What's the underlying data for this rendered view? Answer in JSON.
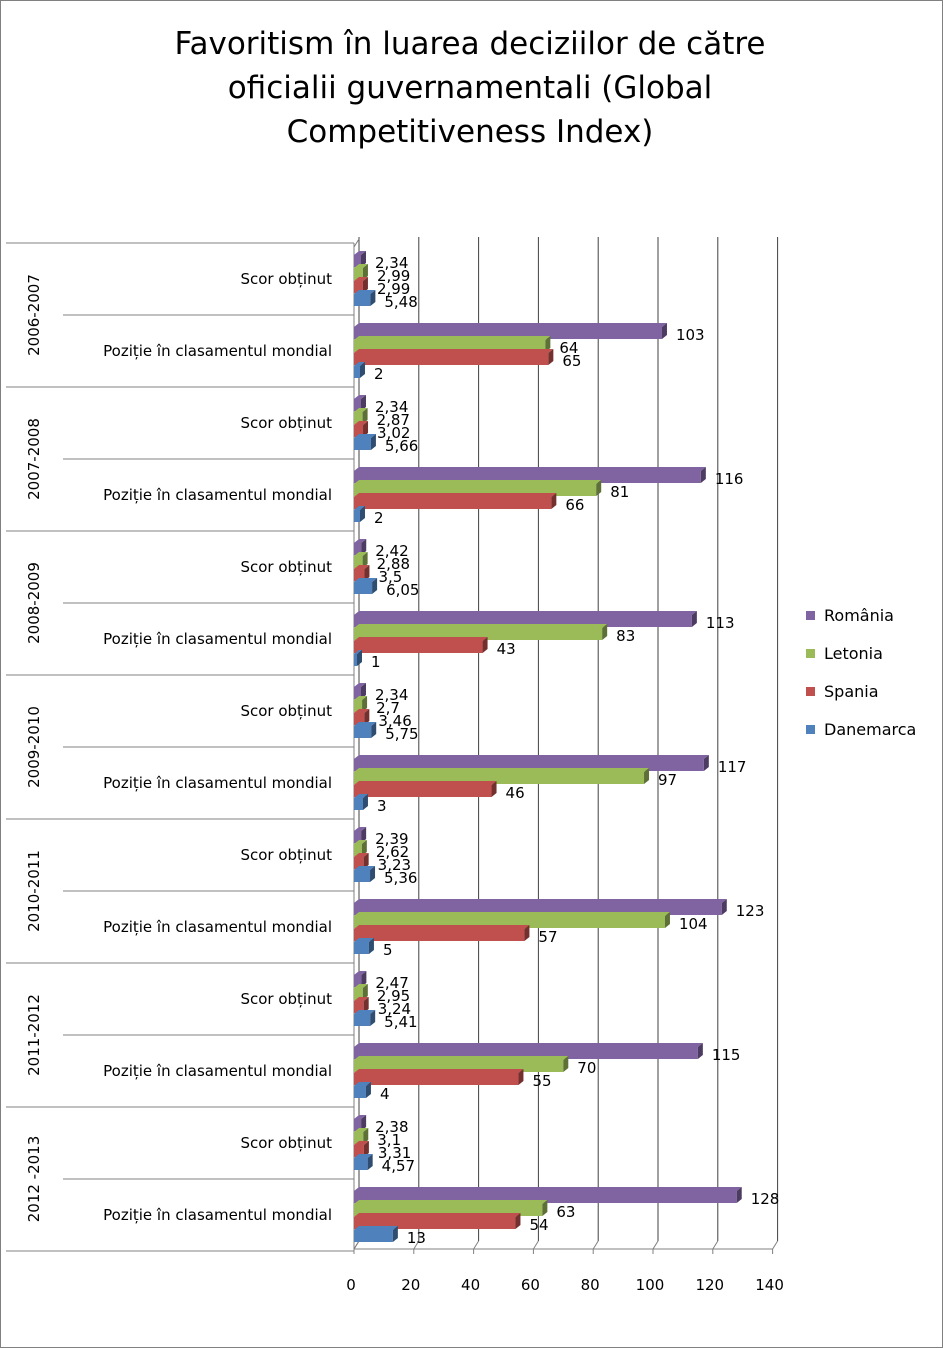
{
  "chart_data": {
    "type": "bar",
    "orientation": "horizontal",
    "title": "Favoritism în luarea deciziilor de către oficialii guvernamentali (Global Competitiveness Index)",
    "title_lines": [
      "Favoritism în luarea deciziilor de către",
      "oficialii guvernamentali (Global",
      "Competitiveness Index)"
    ],
    "xlim": [
      0,
      140
    ],
    "x_ticks": [
      "0",
      "20",
      "40",
      "60",
      "80",
      "100",
      "120",
      "140"
    ],
    "grid": true,
    "legend_position": "right",
    "groups": [
      {
        "period": "2006-2007",
        "categories": [
          {
            "label": "Scor obținut",
            "values": {
              "România": 2.34,
              "Letonia": 2.99,
              "Spania": 2.99,
              "Danemarca": 5.48
            },
            "labels": {
              "România": "2,34",
              "Letonia": "2,99",
              "Spania": "2,99",
              "Danemarca": "5,48"
            }
          },
          {
            "label": "Poziție în clasamentul mondial",
            "values": {
              "România": 103,
              "Letonia": 64,
              "Spania": 65,
              "Danemarca": 2
            },
            "labels": {
              "România": "103",
              "Letonia": "64",
              "Spania": "65",
              "Danemarca": "2"
            }
          }
        ]
      },
      {
        "period": "2007-2008",
        "categories": [
          {
            "label": "Scor obținut",
            "values": {
              "România": 2.34,
              "Letonia": 2.87,
              "Spania": 3.02,
              "Danemarca": 5.66
            },
            "labels": {
              "România": "2,34",
              "Letonia": "2,87",
              "Spania": "3,02",
              "Danemarca": "5,66"
            }
          },
          {
            "label": "Poziție în clasamentul mondial",
            "values": {
              "România": 116,
              "Letonia": 81,
              "Spania": 66,
              "Danemarca": 2
            },
            "labels": {
              "România": "116",
              "Letonia": "81",
              "Spania": "66",
              "Danemarca": "2"
            }
          }
        ]
      },
      {
        "period": "2008-2009",
        "categories": [
          {
            "label": "Scor obținut",
            "values": {
              "România": 2.42,
              "Letonia": 2.88,
              "Spania": 3.5,
              "Danemarca": 6.05
            },
            "labels": {
              "România": "2,42",
              "Letonia": "2,88",
              "Spania": "3,5",
              "Danemarca": "6,05"
            }
          },
          {
            "label": "Poziție în clasamentul mondial",
            "values": {
              "România": 113,
              "Letonia": 83,
              "Spania": 43,
              "Danemarca": 1
            },
            "labels": {
              "România": "113",
              "Letonia": "83",
              "Spania": "43",
              "Danemarca": "1"
            }
          }
        ]
      },
      {
        "period": "2009-2010",
        "categories": [
          {
            "label": "Scor obținut",
            "values": {
              "România": 2.34,
              "Letonia": 2.7,
              "Spania": 3.46,
              "Danemarca": 5.75
            },
            "labels": {
              "România": "2,34",
              "Letonia": "2,7",
              "Spania": "3,46",
              "Danemarca": "5,75"
            }
          },
          {
            "label": "Poziție în clasamentul mondial",
            "values": {
              "România": 117,
              "Letonia": 97,
              "Spania": 46,
              "Danemarca": 3
            },
            "labels": {
              "România": "117",
              "Letonia": "97",
              "Spania": "46",
              "Danemarca": "3"
            }
          }
        ]
      },
      {
        "period": "2010-2011",
        "categories": [
          {
            "label": "Scor obținut",
            "values": {
              "România": 2.39,
              "Letonia": 2.62,
              "Spania": 3.23,
              "Danemarca": 5.36
            },
            "labels": {
              "România": "2,39",
              "Letonia": "2,62",
              "Spania": "3,23",
              "Danemarca": "5,36"
            }
          },
          {
            "label": "Poziție în clasamentul mondial",
            "values": {
              "România": 123,
              "Letonia": 104,
              "Spania": 57,
              "Danemarca": 5
            },
            "labels": {
              "România": "123",
              "Letonia": "104",
              "Spania": "57",
              "Danemarca": "5"
            }
          }
        ]
      },
      {
        "period": "2011-2012",
        "categories": [
          {
            "label": "Scor obținut",
            "values": {
              "România": 2.47,
              "Letonia": 2.95,
              "Spania": 3.24,
              "Danemarca": 5.41
            },
            "labels": {
              "România": "2,47",
              "Letonia": "2,95",
              "Spania": "3,24",
              "Danemarca": "5,41"
            }
          },
          {
            "label": "Poziție în clasamentul mondial",
            "values": {
              "România": 115,
              "Letonia": 70,
              "Spania": 55,
              "Danemarca": 4
            },
            "labels": {
              "România": "115",
              "Letonia": "70",
              "Spania": "55",
              "Danemarca": "4"
            }
          }
        ]
      },
      {
        "period": "2012 -2013",
        "categories": [
          {
            "label": "Scor obținut",
            "values": {
              "România": 2.38,
              "Letonia": 3.1,
              "Spania": 3.31,
              "Danemarca": 4.57
            },
            "labels": {
              "România": "2,38",
              "Letonia": "3,1",
              "Spania": "3,31",
              "Danemarca": "4,57"
            }
          },
          {
            "label": "Poziție în clasamentul mondial",
            "values": {
              "România": 128,
              "Letonia": 63,
              "Spania": 54,
              "Danemarca": 13
            },
            "labels": {
              "România": "128",
              "Letonia": "63",
              "Spania": "54",
              "Danemarca": "13"
            }
          }
        ]
      }
    ],
    "series": [
      {
        "name": "România",
        "color": "#8064a2"
      },
      {
        "name": "Letonia",
        "color": "#9bbb59"
      },
      {
        "name": "Spania",
        "color": "#c0504d"
      },
      {
        "name": "Danemarca",
        "color": "#4f81bd"
      }
    ]
  }
}
